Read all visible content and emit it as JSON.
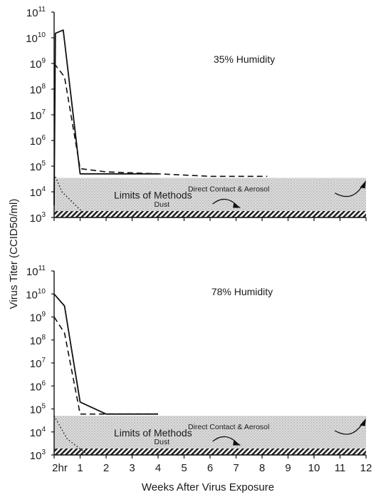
{
  "figure": {
    "shared_ylabel": "Virus Titer (CCID50/ml)",
    "shared_xlabel": "Weeks After Virus Exposure"
  },
  "chart_data": [
    {
      "type": "line",
      "title": "35% Humidity",
      "ylabel": "Virus Titer (CCID50/ml)",
      "xlabel": "Weeks After Virus Exposure",
      "yscale": "log",
      "ylim": [
        1000,
        100000000000
      ],
      "xlim": [
        0,
        12
      ],
      "x_tick_labels": [
        "2hr",
        "1",
        "2",
        "3",
        "4",
        "5",
        "6",
        "7",
        "8",
        "9",
        "10",
        "11",
        "12"
      ],
      "y_ticks": [
        {
          "base": "10",
          "exp": "3",
          "value": 1000
        },
        {
          "base": "10",
          "exp": "4",
          "value": 10000
        },
        {
          "base": "10",
          "exp": "5",
          "value": 100000
        },
        {
          "base": "10",
          "exp": "6",
          "value": 1000000
        },
        {
          "base": "10",
          "exp": "7",
          "value": 10000000
        },
        {
          "base": "10",
          "exp": "8",
          "value": 100000000
        },
        {
          "base": "10",
          "exp": "9",
          "value": 1000000000
        },
        {
          "base": "10",
          "exp": "10",
          "value": 10000000000
        },
        {
          "base": "10",
          "exp": "11",
          "value": 100000000000
        }
      ],
      "series": [
        {
          "style": "solid",
          "points": [
            [
              0,
              3000
            ],
            [
              0.05,
              15000000000.0
            ],
            [
              0.35,
              20000000000.0
            ],
            [
              1,
              50000.0
            ],
            [
              4,
              50000.0
            ]
          ]
        },
        {
          "style": "dashed",
          "points": [
            [
              0,
              1000000000.0
            ],
            [
              0.4,
              300000000.0
            ],
            [
              1,
              80000.0
            ],
            [
              2,
              60000.0
            ],
            [
              4,
              50000.0
            ],
            [
              6,
              40000.0
            ],
            [
              8.2,
              40000.0
            ]
          ]
        },
        {
          "style": "dotted",
          "points": [
            [
              0,
              50000.0
            ],
            [
              0.3,
              10000.0
            ],
            [
              1.3,
              1000
            ]
          ]
        }
      ],
      "limits_band": {
        "ymin": 1000,
        "ymax": 35000,
        "label": "Limits of Methods"
      },
      "annotations": {
        "direct_contact": "Direct Contact & Aerosol",
        "dust": "Dust"
      }
    },
    {
      "type": "line",
      "title": "78% Humidity",
      "ylabel": "Virus Titer (CCID50/ml)",
      "xlabel": "Weeks After Virus Exposure",
      "yscale": "log",
      "ylim": [
        1000,
        100000000000
      ],
      "xlim": [
        0,
        12
      ],
      "x_tick_labels": [
        "2hr",
        "1",
        "2",
        "3",
        "4",
        "5",
        "6",
        "7",
        "8",
        "9",
        "10",
        "11",
        "12"
      ],
      "y_ticks": [
        {
          "base": "10",
          "exp": "3",
          "value": 1000
        },
        {
          "base": "10",
          "exp": "4",
          "value": 10000
        },
        {
          "base": "10",
          "exp": "5",
          "value": 100000
        },
        {
          "base": "10",
          "exp": "6",
          "value": 1000000
        },
        {
          "base": "10",
          "exp": "7",
          "value": 10000000
        },
        {
          "base": "10",
          "exp": "8",
          "value": 100000000
        },
        {
          "base": "10",
          "exp": "9",
          "value": 1000000000
        },
        {
          "base": "10",
          "exp": "10",
          "value": 10000000000
        },
        {
          "base": "10",
          "exp": "11",
          "value": 100000000000
        }
      ],
      "series": [
        {
          "style": "solid",
          "points": [
            [
              0,
              10000000000.0
            ],
            [
              0.4,
              3000000000.0
            ],
            [
              1,
              200000.0
            ],
            [
              2,
              60000.0
            ],
            [
              4,
              60000.0
            ]
          ]
        },
        {
          "style": "dashed",
          "points": [
            [
              0,
              1000000000.0
            ],
            [
              0.4,
              200000000.0
            ],
            [
              1,
              60000.0
            ],
            [
              2,
              60000.0
            ],
            [
              4,
              60000.0
            ]
          ]
        },
        {
          "style": "dotted",
          "points": [
            [
              0,
              50000.0
            ],
            [
              0.5,
              5000
            ],
            [
              1.3,
              1000
            ]
          ]
        }
      ],
      "limits_band": {
        "ymin": 1000,
        "ymax": 50000,
        "label": "Limits of Methods"
      },
      "annotations": {
        "direct_contact": "Direct Contact & Aerosol",
        "dust": "Dust"
      }
    }
  ]
}
